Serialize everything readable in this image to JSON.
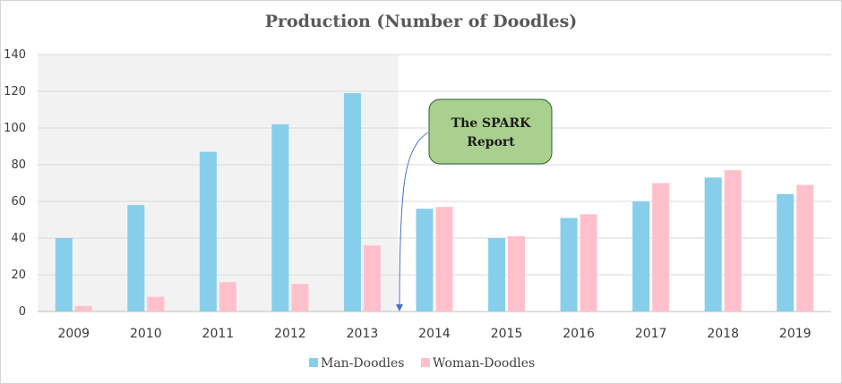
{
  "chart_data": {
    "type": "bar",
    "title": "Production (Number of Doodles)",
    "categories": [
      "2009",
      "2010",
      "2011",
      "2012",
      "2013",
      "2014",
      "2015",
      "2016",
      "2017",
      "2018",
      "2019"
    ],
    "series": [
      {
        "name": "Man-Doodles",
        "values": [
          40,
          58,
          87,
          102,
          119,
          56,
          40,
          51,
          60,
          73,
          64
        ]
      },
      {
        "name": "Woman-Doodles",
        "values": [
          3,
          8,
          16,
          15,
          36,
          57,
          41,
          53,
          70,
          77,
          69
        ]
      }
    ],
    "ylim": [
      0,
      140
    ],
    "yticks": [
      0,
      20,
      40,
      60,
      80,
      100,
      120,
      140
    ],
    "grid": true,
    "legend": "bottom",
    "shaded_period": [
      "2009",
      "2013"
    ],
    "annotation": {
      "text_lines": [
        "The SPARK",
        "Report"
      ],
      "target_category": "2014"
    },
    "colors": {
      "Man-Doodles": "#87ceeb",
      "Woman-Doodles": "#ffc0cb",
      "shading": "#f2f2f2",
      "callout_fill": "#a9d08e",
      "callout_border": "#2e5e2e",
      "arrow": "#4472c4"
    }
  }
}
